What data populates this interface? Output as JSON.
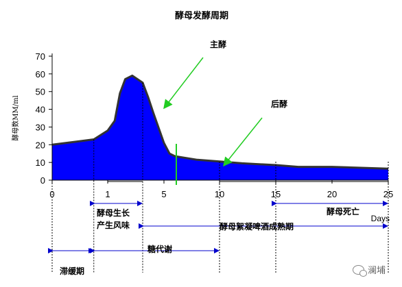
{
  "chart_data": {
    "type": "area",
    "title": "酵母发酵周期",
    "ylabel": "酵母数MM/ml",
    "xlabel": "",
    "x_unit_label": "Days",
    "ylim": [
      0,
      70
    ],
    "yticks": [
      0,
      10,
      20,
      30,
      40,
      50,
      60,
      70
    ],
    "xtick_labels": [
      "0",
      "1",
      "5",
      "10",
      "15",
      "20",
      "25"
    ],
    "x_segments": [
      {
        "label": "0",
        "from": 0,
        "to": 0
      },
      {
        "label": "1",
        "from": 1,
        "to": 3
      },
      {
        "label": "5",
        "from": 5,
        "to": 5
      },
      {
        "label": "10",
        "from": 10,
        "to": 25
      }
    ],
    "series": [
      {
        "fill_color": "#0000ff",
        "edge_color": "#333333",
        "x": [
          0,
          0.5,
          0.75,
          1,
          1.4,
          1.7,
          2,
          2.4,
          3,
          3.5,
          4,
          5,
          5.5,
          6,
          7,
          8,
          10,
          12,
          15,
          17,
          20,
          25
        ],
        "y": [
          20,
          22,
          23,
          28,
          33.5,
          49,
          57,
          59,
          55,
          47,
          38,
          21,
          15,
          13.5,
          12.5,
          11.5,
          10.5,
          9.5,
          8.5,
          7.5,
          7.5,
          6.5
        ]
      }
    ],
    "annotations": [
      {
        "text": "主酵",
        "x": 4,
        "y": 40
      },
      {
        "text": "后酵",
        "x": 10,
        "y": 8
      }
    ],
    "dotted_marker_x": [
      0.75,
      3,
      10,
      15,
      25
    ],
    "phases": [
      {
        "label": "酵母生长",
        "label2": "产生风味",
        "from": 0.75,
        "to": 3,
        "row": 1
      },
      {
        "label": "酵母死亡",
        "from": 15,
        "to": 25,
        "row": 1
      },
      {
        "label": "酵母絮凝啤酒成熟期",
        "from": 3,
        "to": 25,
        "row": 2
      },
      {
        "label": "糖代谢",
        "from": 0.75,
        "to": 10,
        "row": 3
      },
      {
        "label": "滞缓期",
        "from": 0,
        "to": 0.75,
        "row": 3
      }
    ]
  },
  "watermark": {
    "icon": "wechat-icon",
    "text": "澜埔"
  }
}
